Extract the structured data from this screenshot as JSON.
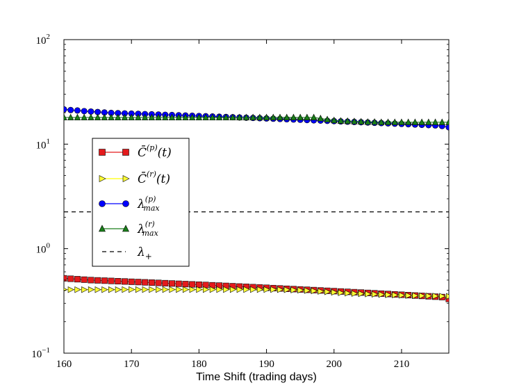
{
  "chart_data": {
    "type": "line",
    "title": "",
    "xlabel": "Time Shift (trading days)",
    "ylabel": "",
    "yscale": "log",
    "xlim": [
      160,
      217
    ],
    "ylim": [
      0.1,
      100
    ],
    "x_ticks": [
      160,
      170,
      180,
      190,
      200,
      210
    ],
    "y_ticks": [
      {
        "value": 0.1,
        "base": "10",
        "exp": "−1"
      },
      {
        "value": 1,
        "base": "10",
        "exp": "0"
      },
      {
        "value": 10,
        "base": "10",
        "exp": "1"
      },
      {
        "value": 100,
        "base": "10",
        "exp": "2"
      }
    ],
    "legend_position": "center-left",
    "series": [
      {
        "name": "C_bar_p",
        "label_main": "C̄",
        "label_sup": "(p)",
        "label_tail": "(t)",
        "marker": "square",
        "color": "#e41a1c",
        "line_color": "#e41a1c",
        "x_start": 160,
        "x_step": 1,
        "values": [
          0.52,
          0.515,
          0.51,
          0.505,
          0.5,
          0.497,
          0.494,
          0.491,
          0.488,
          0.485,
          0.482,
          0.479,
          0.476,
          0.473,
          0.47,
          0.467,
          0.464,
          0.461,
          0.458,
          0.455,
          0.452,
          0.449,
          0.446,
          0.443,
          0.44,
          0.437,
          0.434,
          0.431,
          0.428,
          0.425,
          0.422,
          0.419,
          0.416,
          0.413,
          0.41,
          0.407,
          0.404,
          0.401,
          0.398,
          0.395,
          0.392,
          0.389,
          0.386,
          0.383,
          0.38,
          0.377,
          0.374,
          0.371,
          0.368,
          0.365,
          0.362,
          0.359,
          0.356,
          0.353,
          0.35,
          0.347,
          0.344,
          0.33
        ]
      },
      {
        "name": "C_bar_r",
        "label_main": "C̄",
        "label_sup": "(r)",
        "label_tail": "(t)",
        "marker": "triangle-right",
        "color": "#ffff33",
        "line_color": "#ffff00",
        "x_start": 160,
        "x_step": 1,
        "values": [
          0.405,
          0.405,
          0.405,
          0.405,
          0.405,
          0.405,
          0.405,
          0.405,
          0.405,
          0.406,
          0.406,
          0.406,
          0.406,
          0.406,
          0.406,
          0.406,
          0.406,
          0.406,
          0.406,
          0.406,
          0.406,
          0.406,
          0.406,
          0.406,
          0.406,
          0.406,
          0.406,
          0.406,
          0.406,
          0.406,
          0.406,
          0.406,
          0.405,
          0.404,
          0.402,
          0.4,
          0.397,
          0.394,
          0.39,
          0.386,
          0.382,
          0.378,
          0.375,
          0.372,
          0.37,
          0.368,
          0.366,
          0.364,
          0.362,
          0.36,
          0.358,
          0.356,
          0.355,
          0.354,
          0.353,
          0.352,
          0.351,
          0.35
        ]
      },
      {
        "name": "lambda_max_p",
        "label_main": "λ",
        "label_sup": "(p)",
        "label_sub": "max",
        "marker": "circle",
        "color": "#0000ff",
        "line_color": "#0000ff",
        "x_start": 160,
        "x_step": 1,
        "values": [
          21.5,
          21.2,
          21.0,
          20.7,
          20.5,
          20.3,
          20.1,
          19.9,
          19.8,
          19.7,
          19.6,
          19.5,
          19.4,
          19.3,
          19.2,
          19.1,
          19.0,
          18.9,
          18.8,
          18.7,
          18.6,
          18.5,
          18.4,
          18.3,
          18.2,
          18.1,
          18.0,
          17.9,
          17.8,
          17.7,
          17.6,
          17.5,
          17.4,
          17.3,
          17.2,
          17.1,
          17.0,
          16.9,
          16.8,
          16.7,
          16.6,
          16.5,
          16.4,
          16.3,
          16.2,
          16.1,
          16.0,
          15.9,
          15.8,
          15.7,
          15.6,
          15.5,
          15.4,
          15.3,
          15.2,
          15.1,
          14.9,
          14.5
        ]
      },
      {
        "name": "lambda_max_r",
        "label_main": "λ",
        "label_sup": "(r)",
        "label_sub": "max",
        "marker": "triangle-up",
        "color": "#1a7f1a",
        "line_color": "#1a7f1a",
        "x_start": 160,
        "x_step": 1,
        "values": [
          18.0,
          18.0,
          18.0,
          18.0,
          18.0,
          18.0,
          18.0,
          18.0,
          18.0,
          18.0,
          18.0,
          18.0,
          18.0,
          18.0,
          18.0,
          18.0,
          18.0,
          18.0,
          18.0,
          18.0,
          18.0,
          18.0,
          18.0,
          18.0,
          18.0,
          18.0,
          18.0,
          18.0,
          18.0,
          18.0,
          18.0,
          18.0,
          18.0,
          18.0,
          18.0,
          18.0,
          18.0,
          18.0,
          17.6,
          17.2,
          16.9,
          16.7,
          16.6,
          16.5,
          16.4,
          16.3,
          16.3,
          16.2,
          16.2,
          16.2,
          16.2,
          16.2,
          16.2,
          16.2,
          16.2,
          16.2,
          16.2,
          16.2
        ]
      },
      {
        "name": "lambda_plus",
        "label_main": "λ",
        "label_sub": "+",
        "marker": "none",
        "color": "#000000",
        "line_style": "dashed",
        "constant_value": 2.25
      }
    ]
  }
}
